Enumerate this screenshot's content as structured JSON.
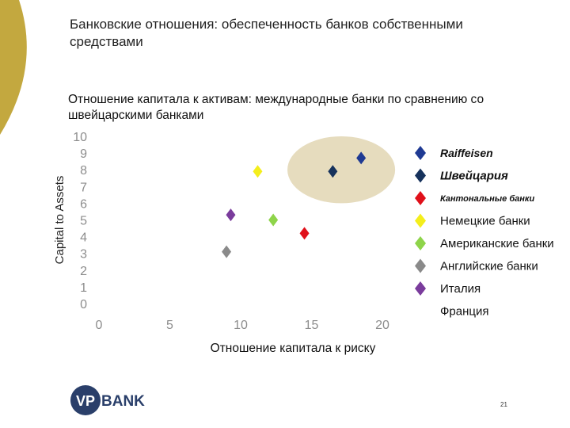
{
  "slide": {
    "title": "Банковские отношения: обеспеченность банков собственными средствами",
    "page_number": "21",
    "logo_text": "VPBANK"
  },
  "colors": {
    "deco_arc": "#c3a83f",
    "ellipse_fill": "#e6dcbe",
    "axis_text": "#8c8c8c"
  },
  "chart_data": {
    "type": "scatter",
    "title": "Отношение капитала к активам: международные банки по сравнению со швейцарскими банками",
    "xlabel": "Отношение капитала к риску",
    "ylabel": "Capital to Assets",
    "xlim": [
      0,
      20
    ],
    "ylim": [
      0,
      10
    ],
    "x_ticks": [
      "0",
      "5",
      "10",
      "15",
      "20"
    ],
    "y_ticks": [
      "0",
      "1",
      "2",
      "3",
      "4",
      "5",
      "6",
      "7",
      "8",
      "9",
      "10"
    ],
    "grid": false,
    "legend_position": "right",
    "highlight": {
      "label": "",
      "cx": 17.1,
      "cy": 8.0,
      "rx": 3.8,
      "ry": 2.0
    },
    "series": [
      {
        "name": "Raiffeisen",
        "color": "#1f3a93",
        "legend_style": "bold",
        "points": [
          [
            18.5,
            8.7
          ]
        ]
      },
      {
        "name": "Швейцария",
        "color": "#16325c",
        "legend_style": "bold-italic",
        "points": [
          [
            16.5,
            7.9
          ]
        ]
      },
      {
        "name": "Кантональные банки",
        "color": "#e0101a",
        "legend_style": "bold-italic-small",
        "points": [
          [
            14.5,
            4.2
          ]
        ]
      },
      {
        "name": "Немецкие банки",
        "color": "#f4ee1c",
        "legend_style": "normal",
        "points": [
          [
            11.2,
            7.9
          ]
        ]
      },
      {
        "name": "Американские банки",
        "color": "#8ed44a",
        "legend_style": "normal",
        "points": [
          [
            12.3,
            5.0
          ]
        ]
      },
      {
        "name": "Английские банки",
        "color": "#8a8a8a",
        "legend_style": "normal",
        "points": [
          [
            9.0,
            3.1
          ]
        ]
      },
      {
        "name": "Италия",
        "color": "#7a3c9c",
        "legend_style": "normal",
        "points": [
          [
            9.3,
            5.3
          ]
        ]
      },
      {
        "name": "Франция",
        "color": "",
        "legend_style": "normal",
        "points": []
      }
    ]
  }
}
